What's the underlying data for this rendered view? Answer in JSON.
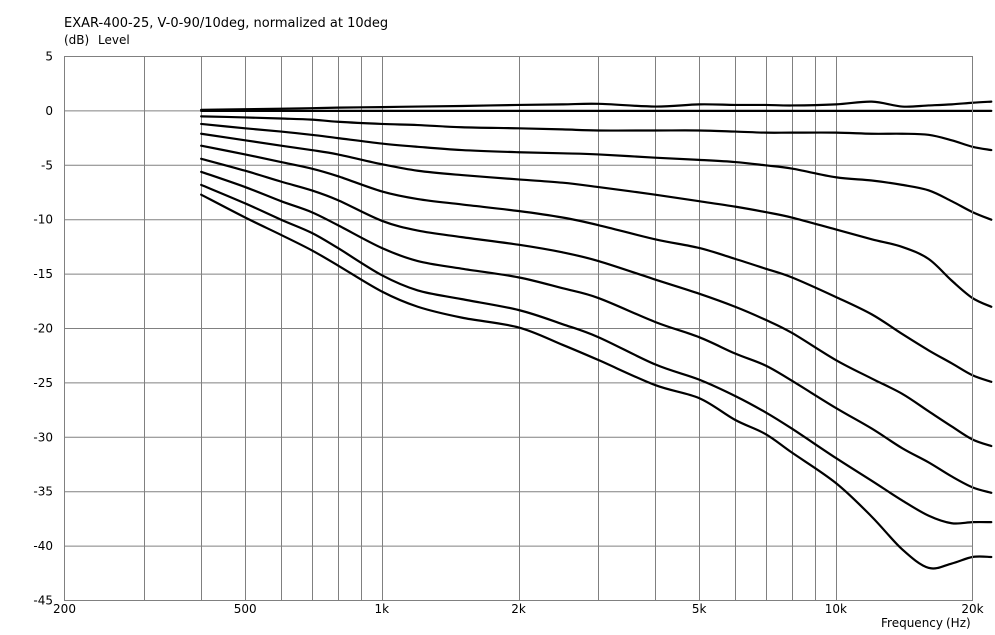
{
  "chart_data": {
    "type": "line",
    "title": "EXAR-400-25, V-0-90/10deg, normalized at 10deg",
    "ylabel_unit": "(dB)",
    "ylabel": "Level",
    "xlabel": "Frequency",
    "xlabel_unit": "(Hz)",
    "x_scale": "log",
    "xlim": [
      200,
      20000
    ],
    "ylim": [
      -45,
      5
    ],
    "grid": true,
    "legend": "none",
    "x_ticks": [
      200,
      500,
      1000,
      2000,
      5000,
      10000,
      20000
    ],
    "x_tick_labels": [
      "200",
      "500",
      "1k",
      "2k",
      "5k",
      "10k",
      "20k"
    ],
    "y_ticks": [
      5,
      0,
      -5,
      -10,
      -15,
      -20,
      -25,
      -30,
      -35,
      -40,
      -45
    ],
    "y_tick_labels": [
      "5",
      "0",
      "-5",
      "-10",
      "-15",
      "-20",
      "-25",
      "-30",
      "-35",
      "-40",
      "-45"
    ],
    "x": [
      400,
      500,
      600,
      700,
      800,
      1000,
      1200,
      1500,
      2000,
      2500,
      3000,
      4000,
      5000,
      6000,
      7000,
      8000,
      10000,
      12000,
      14000,
      16000,
      18000,
      20000,
      22000
    ],
    "series": [
      {
        "values": [
          0.1,
          0.15,
          0.2,
          0.25,
          0.3,
          0.35,
          0.4,
          0.45,
          0.55,
          0.6,
          0.65,
          0.4,
          0.6,
          0.55,
          0.55,
          0.5,
          0.6,
          0.85,
          0.4,
          0.5,
          0.6,
          0.75,
          0.85
        ]
      },
      {
        "values": [
          0.0,
          0.0,
          0.0,
          0.0,
          0.0,
          0.0,
          0.0,
          0.0,
          0.0,
          0.0,
          0.0,
          0.0,
          0.0,
          0.0,
          0.0,
          0.0,
          0.0,
          0.0,
          0.0,
          0.0,
          0.0,
          0.0,
          0.0
        ]
      },
      {
        "values": [
          -0.5,
          -0.6,
          -0.7,
          -0.8,
          -1.0,
          -1.2,
          -1.3,
          -1.5,
          -1.6,
          -1.7,
          -1.8,
          -1.8,
          -1.8,
          -1.9,
          -2.0,
          -2.0,
          -2.0,
          -2.1,
          -2.1,
          -2.2,
          -2.7,
          -3.3,
          -3.6
        ]
      },
      {
        "values": [
          -1.2,
          -1.6,
          -1.9,
          -2.2,
          -2.5,
          -3.0,
          -3.3,
          -3.6,
          -3.8,
          -3.9,
          -4.0,
          -4.3,
          -4.5,
          -4.7,
          -5.0,
          -5.3,
          -6.1,
          -6.4,
          -6.8,
          -7.3,
          -8.3,
          -9.3,
          -10.0
        ]
      },
      {
        "values": [
          -2.1,
          -2.7,
          -3.2,
          -3.6,
          -4.0,
          -4.9,
          -5.5,
          -5.9,
          -6.3,
          -6.6,
          -7.0,
          -7.7,
          -8.3,
          -8.8,
          -9.3,
          -9.8,
          -10.9,
          -11.8,
          -12.5,
          -13.6,
          -15.6,
          -17.2,
          -18.0
        ]
      },
      {
        "values": [
          -3.2,
          -4.0,
          -4.7,
          -5.3,
          -6.0,
          -7.4,
          -8.1,
          -8.6,
          -9.2,
          -9.8,
          -10.5,
          -11.8,
          -12.6,
          -13.6,
          -14.5,
          -15.3,
          -17.1,
          -18.7,
          -20.5,
          -22.0,
          -23.2,
          -24.3,
          -24.9
        ]
      },
      {
        "values": [
          -4.4,
          -5.5,
          -6.5,
          -7.3,
          -8.2,
          -10.1,
          -11.0,
          -11.6,
          -12.3,
          -13.0,
          -13.8,
          -15.5,
          -16.8,
          -18.0,
          -19.2,
          -20.4,
          -22.9,
          -24.6,
          -26.0,
          -27.6,
          -29.0,
          -30.2,
          -30.8
        ]
      },
      {
        "values": [
          -5.6,
          -7.0,
          -8.3,
          -9.3,
          -10.5,
          -12.6,
          -13.8,
          -14.5,
          -15.3,
          -16.3,
          -17.2,
          -19.4,
          -20.8,
          -22.3,
          -23.4,
          -24.8,
          -27.3,
          -29.2,
          -31.0,
          -32.3,
          -33.6,
          -34.6,
          -35.1
        ]
      },
      {
        "values": [
          -6.8,
          -8.5,
          -10.0,
          -11.2,
          -12.6,
          -15.1,
          -16.5,
          -17.3,
          -18.3,
          -19.6,
          -20.8,
          -23.3,
          -24.7,
          -26.2,
          -27.7,
          -29.2,
          -31.9,
          -34.0,
          -35.8,
          -37.2,
          -37.9,
          -37.8,
          -37.8
        ]
      },
      {
        "values": [
          -7.7,
          -9.8,
          -11.4,
          -12.8,
          -14.2,
          -16.6,
          -18.0,
          -19.0,
          -19.9,
          -21.5,
          -22.9,
          -25.2,
          -26.4,
          -28.4,
          -29.7,
          -31.4,
          -34.2,
          -37.3,
          -40.3,
          -42.0,
          -41.6,
          -41.0,
          -41.0
        ]
      }
    ]
  }
}
